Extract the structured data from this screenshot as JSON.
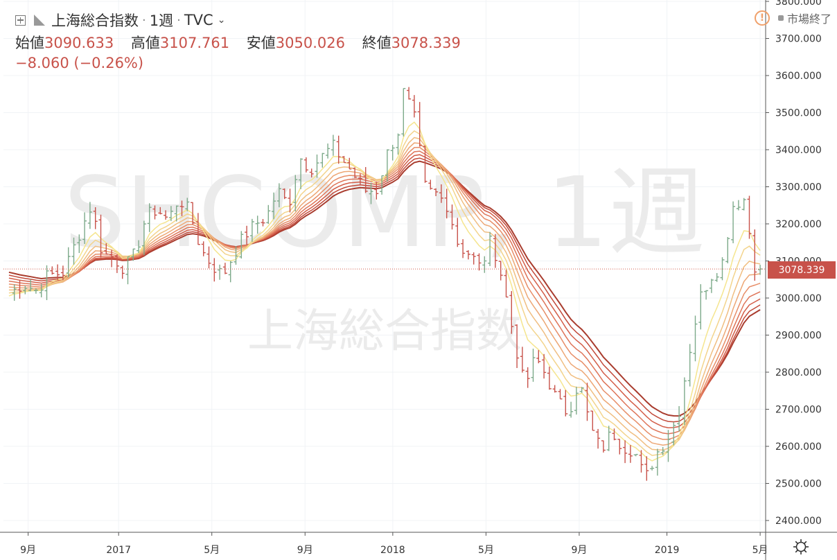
{
  "header": {
    "symbol_name": "上海総合指数",
    "interval": "1週",
    "exchange": "TVC",
    "market_status": "市場終了",
    "ohlc": [
      {
        "label": "始値",
        "value": "3090.633"
      },
      {
        "label": "高値",
        "value": "3107.761"
      },
      {
        "label": "安値",
        "value": "3050.026"
      },
      {
        "label": "終値",
        "value": "3078.339"
      }
    ],
    "change": "−8.060 (−0.26%)"
  },
  "watermark": {
    "symbol": "SHCOMP, 1週",
    "name": "上海総合指数"
  },
  "last_price_label": "3078.339",
  "colors": {
    "up": "#7daa8a",
    "down": "#c8524a",
    "ribbon": [
      "#a93c2e",
      "#c24a3a",
      "#d35d48",
      "#de7458",
      "#e78d67",
      "#eda775",
      "#f0be81",
      "#f3d48c",
      "#f5e58e"
    ],
    "last_line": "#d35a4a"
  },
  "icons": [
    "expand-icon",
    "flag-icon",
    "chevron-down-icon",
    "alert-icon",
    "settings-icon"
  ],
  "chart_data": {
    "type": "candlestick",
    "price_axis_ticks": [
      "3800.000",
      "3700.000",
      "3600.000",
      "3500.000",
      "3400.000",
      "3300.000",
      "3200.000",
      "3100.000",
      "3000.000",
      "2900.000",
      "2800.000",
      "2700.000",
      "2600.000",
      "2500.000",
      "2400.000"
    ],
    "ylim": [
      2400,
      3800
    ],
    "time_axis_ticks": [
      {
        "label": "9月",
        "t": 0.07
      },
      {
        "label": "2017",
        "t": 0.4
      },
      {
        "label": "5月",
        "t": 0.74
      },
      {
        "label": "9月",
        "t": 1.08
      },
      {
        "label": "2018",
        "t": 1.4
      },
      {
        "label": "5月",
        "t": 1.74
      },
      {
        "label": "9月",
        "t": 2.08
      },
      {
        "label": "2019",
        "t": 2.4
      },
      {
        "label": "5月",
        "t": 2.74
      }
    ],
    "xlim": [
      -0.02,
      2.76
    ],
    "ribbon_periods": 9,
    "series": [
      {
        "name": "close",
        "points": [
          [
            0.0,
            3010
          ],
          [
            0.05,
            3040
          ],
          [
            0.1,
            3020
          ],
          [
            0.14,
            3060
          ],
          [
            0.2,
            3070
          ],
          [
            0.26,
            3180
          ],
          [
            0.3,
            3250
          ],
          [
            0.34,
            3120
          ],
          [
            0.38,
            3110
          ],
          [
            0.42,
            3080
          ],
          [
            0.46,
            3120
          ],
          [
            0.5,
            3220
          ],
          [
            0.54,
            3240
          ],
          [
            0.58,
            3210
          ],
          [
            0.62,
            3270
          ],
          [
            0.66,
            3230
          ],
          [
            0.7,
            3130
          ],
          [
            0.74,
            3090
          ],
          [
            0.78,
            3060
          ],
          [
            0.82,
            3120
          ],
          [
            0.86,
            3170
          ],
          [
            0.9,
            3200
          ],
          [
            0.94,
            3220
          ],
          [
            0.98,
            3290
          ],
          [
            1.02,
            3250
          ],
          [
            1.06,
            3380
          ],
          [
            1.1,
            3350
          ],
          [
            1.14,
            3380
          ],
          [
            1.18,
            3410
          ],
          [
            1.22,
            3370
          ],
          [
            1.26,
            3330
          ],
          [
            1.3,
            3290
          ],
          [
            1.34,
            3290
          ],
          [
            1.38,
            3390
          ],
          [
            1.42,
            3450
          ],
          [
            1.44,
            3560
          ],
          [
            1.48,
            3480
          ],
          [
            1.52,
            3290
          ],
          [
            1.56,
            3280
          ],
          [
            1.6,
            3250
          ],
          [
            1.64,
            3140
          ],
          [
            1.68,
            3120
          ],
          [
            1.72,
            3080
          ],
          [
            1.76,
            3160
          ],
          [
            1.8,
            3050
          ],
          [
            1.84,
            2900
          ],
          [
            1.88,
            2760
          ],
          [
            1.92,
            2840
          ],
          [
            1.96,
            2790
          ],
          [
            2.0,
            2720
          ],
          [
            2.04,
            2690
          ],
          [
            2.08,
            2780
          ],
          [
            2.12,
            2650
          ],
          [
            2.16,
            2590
          ],
          [
            2.2,
            2640
          ],
          [
            2.24,
            2600
          ],
          [
            2.28,
            2590
          ],
          [
            2.32,
            2510
          ],
          [
            2.36,
            2580
          ],
          [
            2.4,
            2620
          ],
          [
            2.44,
            2680
          ],
          [
            2.48,
            2850
          ],
          [
            2.52,
            3000
          ],
          [
            2.56,
            3060
          ],
          [
            2.6,
            3090
          ],
          [
            2.64,
            3250
          ],
          [
            2.68,
            3270
          ],
          [
            2.72,
            3090
          ],
          [
            2.74,
            3078.339
          ]
        ]
      }
    ]
  }
}
